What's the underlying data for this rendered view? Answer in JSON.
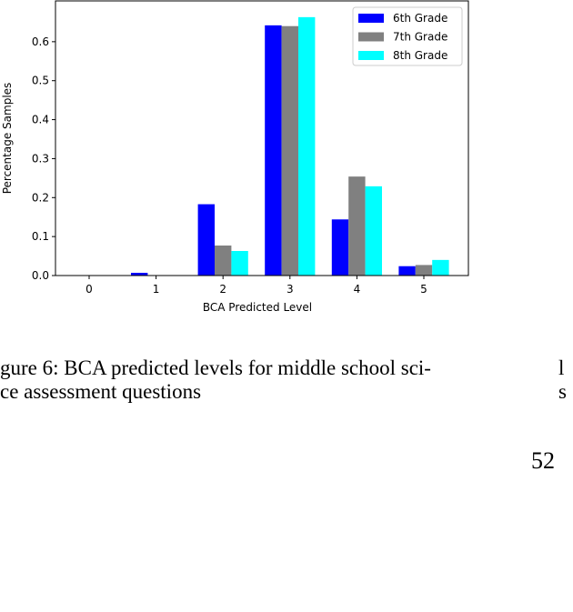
{
  "chart_data": {
    "type": "bar",
    "categories": [
      "0",
      "1",
      "2",
      "3",
      "4",
      "5"
    ],
    "series": [
      {
        "name": "6th Grade",
        "color": "#0000ff",
        "values": [
          0.0,
          0.007,
          0.183,
          0.642,
          0.144,
          0.024
        ]
      },
      {
        "name": "7th Grade",
        "color": "#808080",
        "values": [
          0.0,
          0.0,
          0.077,
          0.64,
          0.254,
          0.027
        ]
      },
      {
        "name": "8th Grade",
        "color": "#00ffff",
        "values": [
          0.0,
          0.0,
          0.063,
          0.663,
          0.229,
          0.04
        ]
      }
    ],
    "xlabel": "BCA Predicted Level",
    "ylabel": "Percentage Samples",
    "ylim": [
      0,
      0.7
    ],
    "yticks": [
      "0.0",
      "0.1",
      "0.2",
      "0.3",
      "0.4",
      "0.5",
      "0.6"
    ],
    "legend_position": "top-right",
    "grid": false
  },
  "caption": {
    "line1": "gure 6:  BCA predicted levels for middle school sci-",
    "line2": "ce assessment questions"
  },
  "side_text": {
    "line1": "l",
    "line2": "s"
  },
  "page_number": "52"
}
